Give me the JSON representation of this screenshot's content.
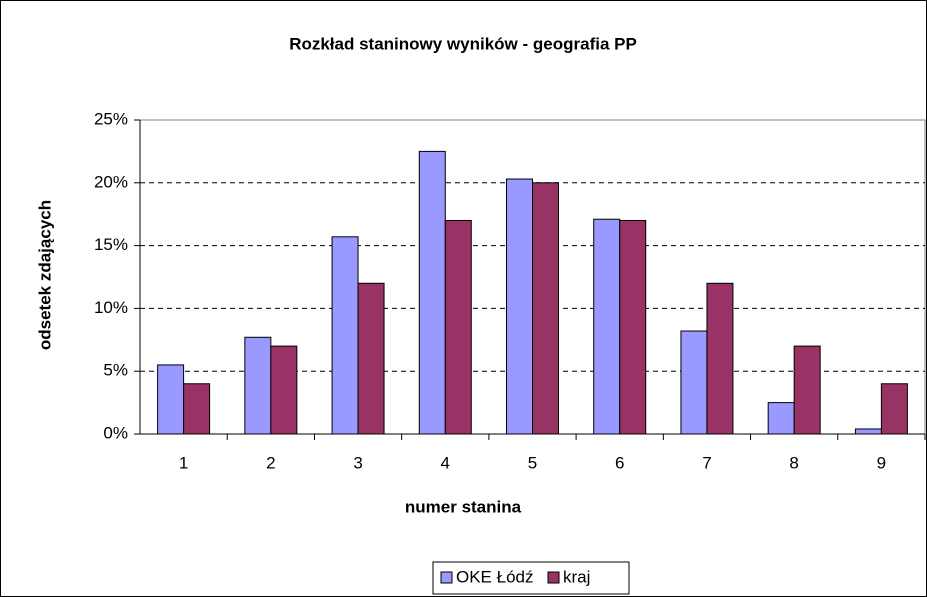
{
  "chart_data": {
    "type": "bar",
    "title": "Rozkład staninowy wyników - geografia PP",
    "x_label": "numer stanina",
    "y_label": "odsetek zdających",
    "categories": [
      "1",
      "2",
      "3",
      "4",
      "5",
      "6",
      "7",
      "8",
      "9"
    ],
    "series": [
      {
        "name": "OKE Łódź",
        "color": "#9999ff",
        "values": [
          5.5,
          7.7,
          15.7,
          22.5,
          20.3,
          17.1,
          8.2,
          2.5,
          0.4
        ]
      },
      {
        "name": "kraj",
        "color": "#993366",
        "values": [
          4,
          7,
          12,
          17,
          20,
          17,
          12,
          7,
          4
        ]
      }
    ],
    "ylim": [
      0,
      25
    ],
    "yticks": [
      {
        "value": 0,
        "label": "0%"
      },
      {
        "value": 5,
        "label": "5%"
      },
      {
        "value": 10,
        "label": "10%"
      },
      {
        "value": 15,
        "label": "15%"
      },
      {
        "value": 20,
        "label": "20%"
      },
      {
        "value": 25,
        "label": "25%"
      }
    ],
    "grid": true,
    "legend": "bottom"
  }
}
